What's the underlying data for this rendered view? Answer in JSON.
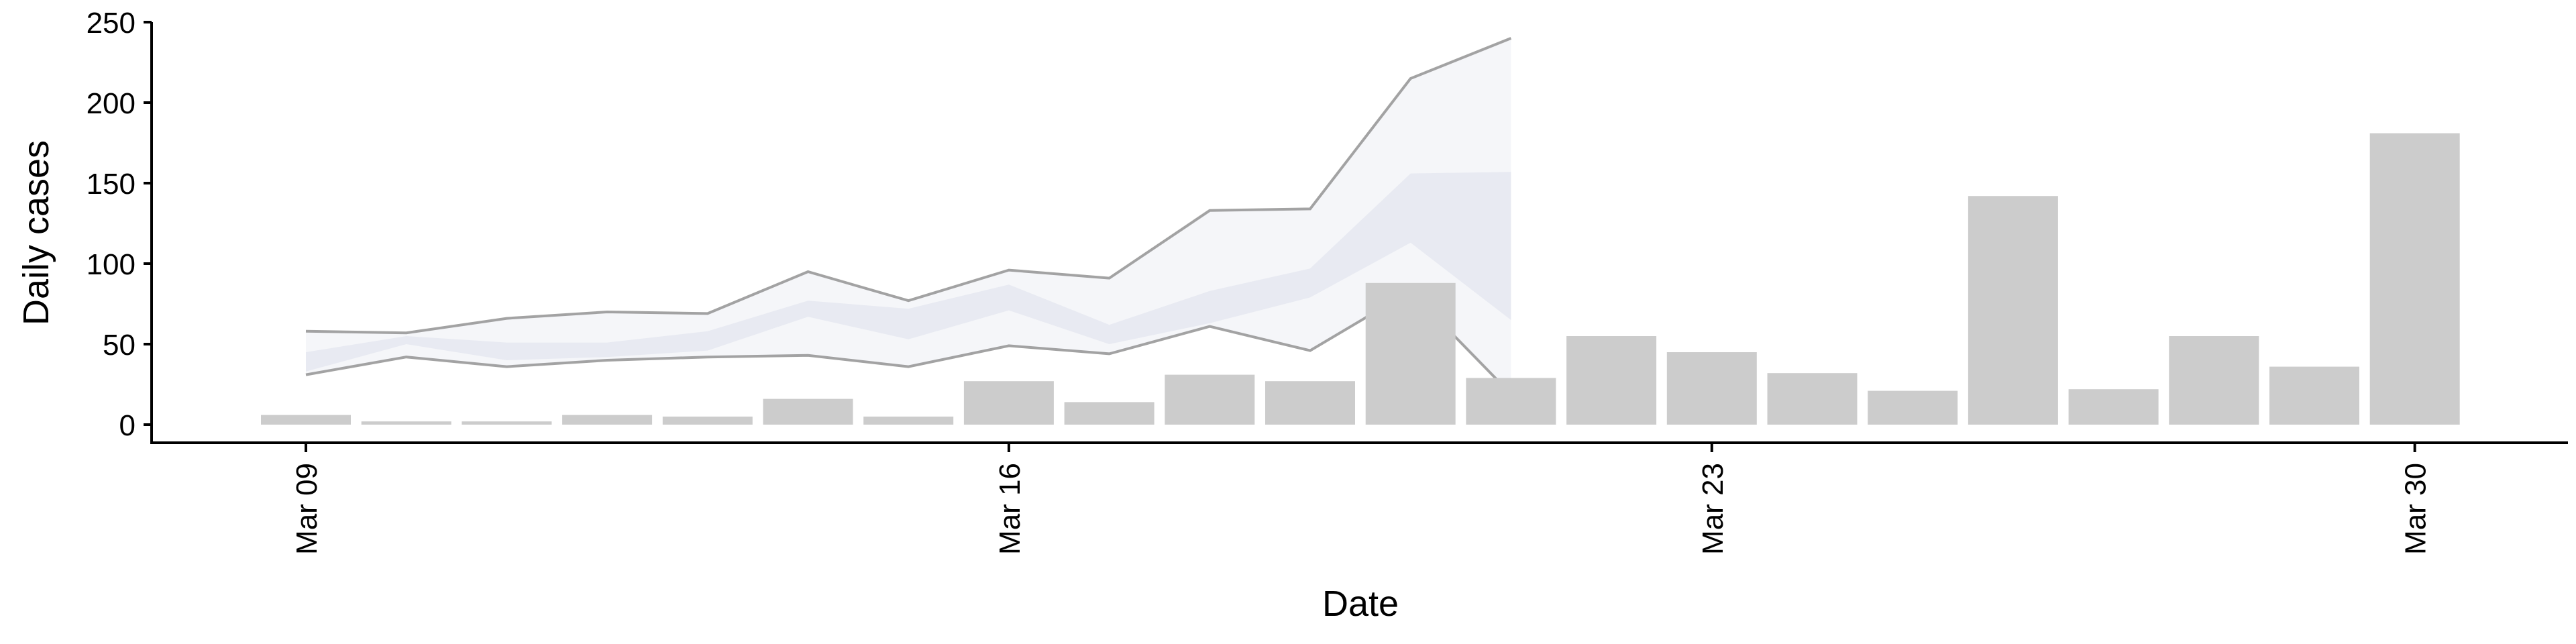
{
  "chart_data": {
    "type": "bar",
    "xlabel": "Date",
    "ylabel": "Daily cases",
    "ylim": [
      0,
      250
    ],
    "yticks": [
      0,
      50,
      100,
      150,
      200,
      250
    ],
    "xtick_labels": [
      "Mar 09",
      "Mar 16",
      "Mar 23",
      "Mar 30"
    ],
    "xlim": [
      "2020-03-07",
      "2020-04-01"
    ],
    "bar_color": "#cccccc",
    "band_color": "#e3e6ef",
    "line_color": "#999999",
    "series": [
      {
        "type": "bar",
        "x": [
          "2020-03-09",
          "2020-03-10",
          "2020-03-11",
          "2020-03-12",
          "2020-03-13",
          "2020-03-14",
          "2020-03-15",
          "2020-03-16",
          "2020-03-17",
          "2020-03-18",
          "2020-03-19",
          "2020-03-20",
          "2020-03-21",
          "2020-03-22",
          "2020-03-23",
          "2020-03-24",
          "2020-03-25",
          "2020-03-26",
          "2020-03-27",
          "2020-03-28",
          "2020-03-29",
          "2020-03-30"
        ],
        "values": [
          6,
          2,
          2,
          6,
          5,
          16,
          5,
          27,
          14,
          31,
          27,
          88,
          29,
          55,
          45,
          32,
          21,
          142,
          22,
          55,
          36,
          181
        ]
      },
      {
        "type": "band-inner",
        "x": [
          "2020-03-09",
          "2020-03-10",
          "2020-03-11",
          "2020-03-12",
          "2020-03-13",
          "2020-03-14",
          "2020-03-15",
          "2020-03-16",
          "2020-03-17",
          "2020-03-18",
          "2020-03-19",
          "2020-03-20",
          "2020-03-21"
        ],
        "lower": [
          33,
          50,
          40,
          42,
          46,
          67,
          53,
          71,
          50,
          63,
          79,
          113,
          65
        ],
        "upper": [
          45,
          55,
          51,
          51,
          58,
          77,
          72,
          87,
          62,
          83,
          97,
          156,
          157
        ]
      },
      {
        "type": "band-outer",
        "x": [
          "2020-03-09",
          "2020-03-10",
          "2020-03-11",
          "2020-03-12",
          "2020-03-13",
          "2020-03-14",
          "2020-03-15",
          "2020-03-16",
          "2020-03-17",
          "2020-03-18",
          "2020-03-19",
          "2020-03-20",
          "2020-03-21"
        ],
        "lower": [
          31,
          42,
          36,
          40,
          42,
          43,
          36,
          49,
          44,
          61,
          46,
          83,
          19
        ],
        "upper": [
          58,
          57,
          66,
          70,
          69,
          95,
          77,
          96,
          91,
          133,
          134,
          215,
          240
        ]
      }
    ]
  }
}
